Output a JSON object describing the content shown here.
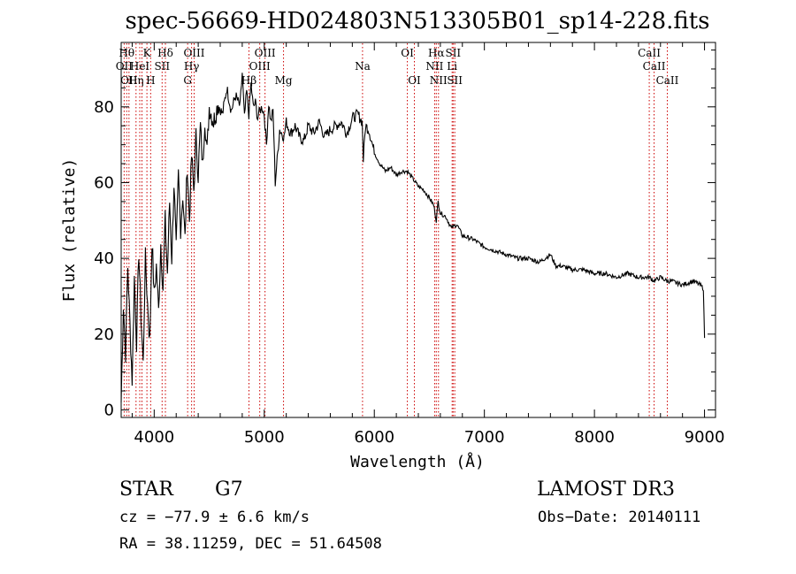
{
  "chart_data": {
    "type": "line",
    "title": "spec-56669-HD024803N513305B01_sp14-228.fits",
    "xlabel": "Wavelength (Å)",
    "ylabel": "Flux (relative)",
    "xlim": [
      3700,
      9100
    ],
    "ylim": [
      -2,
      97
    ],
    "x_ticks": [
      4000,
      5000,
      6000,
      7000,
      8000,
      9000
    ],
    "y_ticks": [
      0,
      20,
      40,
      60,
      80
    ],
    "series": [
      {
        "name": "flux",
        "x": [
          3700,
          3720,
          3740,
          3760,
          3780,
          3800,
          3820,
          3840,
          3860,
          3880,
          3900,
          3920,
          3940,
          3960,
          3980,
          4000,
          4020,
          4040,
          4060,
          4080,
          4100,
          4120,
          4140,
          4160,
          4180,
          4200,
          4220,
          4240,
          4260,
          4280,
          4300,
          4320,
          4340,
          4360,
          4380,
          4400,
          4420,
          4440,
          4460,
          4480,
          4500,
          4540,
          4580,
          4620,
          4660,
          4700,
          4740,
          4780,
          4800,
          4820,
          4840,
          4860,
          4880,
          4900,
          4920,
          4940,
          4960,
          4980,
          5000,
          5020,
          5040,
          5060,
          5080,
          5100,
          5140,
          5180,
          5200,
          5240,
          5280,
          5320,
          5360,
          5400,
          5450,
          5500,
          5550,
          5600,
          5650,
          5700,
          5750,
          5800,
          5850,
          5890,
          5900,
          5920,
          5950,
          6000,
          6050,
          6100,
          6150,
          6200,
          6250,
          6300,
          6350,
          6400,
          6450,
          6500,
          6540,
          6563,
          6580,
          6600,
          6650,
          6700,
          6750,
          6800,
          6900,
          7000,
          7100,
          7200,
          7300,
          7400,
          7500,
          7600,
          7650,
          7700,
          7800,
          7900,
          8000,
          8100,
          8200,
          8300,
          8400,
          8500,
          8540,
          8600,
          8660,
          8700,
          8800,
          8900,
          8960,
          8990,
          9000
        ],
        "values": [
          2,
          28,
          15,
          38,
          22,
          8,
          35,
          18,
          42,
          25,
          12,
          40,
          28,
          18,
          45,
          30,
          38,
          26,
          44,
          32,
          50,
          36,
          55,
          40,
          60,
          42,
          62,
          48,
          57,
          45,
          65,
          50,
          67,
          58,
          72,
          62,
          75,
          64,
          77,
          68,
          80,
          76,
          81,
          78,
          85,
          79,
          83,
          80,
          89,
          77,
          84,
          78,
          86,
          80,
          81,
          77,
          79,
          80,
          78,
          70,
          81,
          76,
          79,
          60,
          74,
          72,
          76,
          73,
          75,
          72,
          71,
          75,
          73,
          76,
          72,
          74,
          75,
          76,
          73,
          77,
          78,
          76,
          66,
          75,
          74,
          68,
          65,
          63,
          64,
          62,
          63,
          63,
          61,
          59,
          58,
          56,
          54,
          50,
          55,
          52,
          51,
          48,
          49,
          46,
          45,
          43,
          42,
          41,
          40,
          40,
          39,
          41,
          38,
          38,
          37,
          37,
          36,
          36,
          35,
          36,
          35,
          35,
          34,
          35,
          34,
          34,
          33,
          34,
          33,
          32,
          19
        ]
      }
    ],
    "line_markers": [
      {
        "wl": 3727,
        "label": "OII",
        "row": 2
      },
      {
        "wl": 3750,
        "label": "Hθ",
        "row": 1
      },
      {
        "wl": 3771,
        "label": "OII",
        "row": 3
      },
      {
        "wl": 3835,
        "label": "Hη",
        "row": 3
      },
      {
        "wl": 3869,
        "label": "HeI",
        "row": 2
      },
      {
        "wl": 3889,
        "label": "",
        "row": 0
      },
      {
        "wl": 3934,
        "label": "K",
        "row": 1
      },
      {
        "wl": 3968,
        "label": "H",
        "row": 3
      },
      {
        "wl": 4072,
        "label": "SII",
        "row": 2
      },
      {
        "wl": 4102,
        "label": "Hδ",
        "row": 1
      },
      {
        "wl": 4304,
        "label": "G",
        "row": 3
      },
      {
        "wl": 4340,
        "label": "Hγ",
        "row": 2
      },
      {
        "wl": 4363,
        "label": "OIII",
        "row": 1
      },
      {
        "wl": 4861,
        "label": "Hβ",
        "row": 3
      },
      {
        "wl": 4959,
        "label": "OIII",
        "row": 2
      },
      {
        "wl": 5007,
        "label": "OIII",
        "row": 1
      },
      {
        "wl": 5175,
        "label": "Mg",
        "row": 3
      },
      {
        "wl": 5893,
        "label": "Na",
        "row": 2
      },
      {
        "wl": 6300,
        "label": "OI",
        "row": 1
      },
      {
        "wl": 6364,
        "label": "OI",
        "row": 3
      },
      {
        "wl": 6548,
        "label": "NII",
        "row": 2
      },
      {
        "wl": 6563,
        "label": "Hα",
        "row": 1
      },
      {
        "wl": 6583,
        "label": "NII",
        "row": 3
      },
      {
        "wl": 6707,
        "label": "Li",
        "row": 2
      },
      {
        "wl": 6716,
        "label": "SII",
        "row": 1
      },
      {
        "wl": 6731,
        "label": "SII",
        "row": 3
      },
      {
        "wl": 8498,
        "label": "CaII",
        "row": 1
      },
      {
        "wl": 8542,
        "label": "CaII",
        "row": 2
      },
      {
        "wl": 8662,
        "label": "CaII",
        "row": 3
      }
    ]
  },
  "info": {
    "object_class": "STAR",
    "subclass": "G7",
    "survey": "LAMOST DR3",
    "cz": "cz = −77.9 ± 6.6 km/s",
    "obs_date": "Obs−Date: 20140111",
    "coords": "RA =  38.11259, DEC =  51.64508"
  },
  "colors": {
    "spectrum": "#000000",
    "line_markers": "#cc0000",
    "axes": "#000000"
  }
}
